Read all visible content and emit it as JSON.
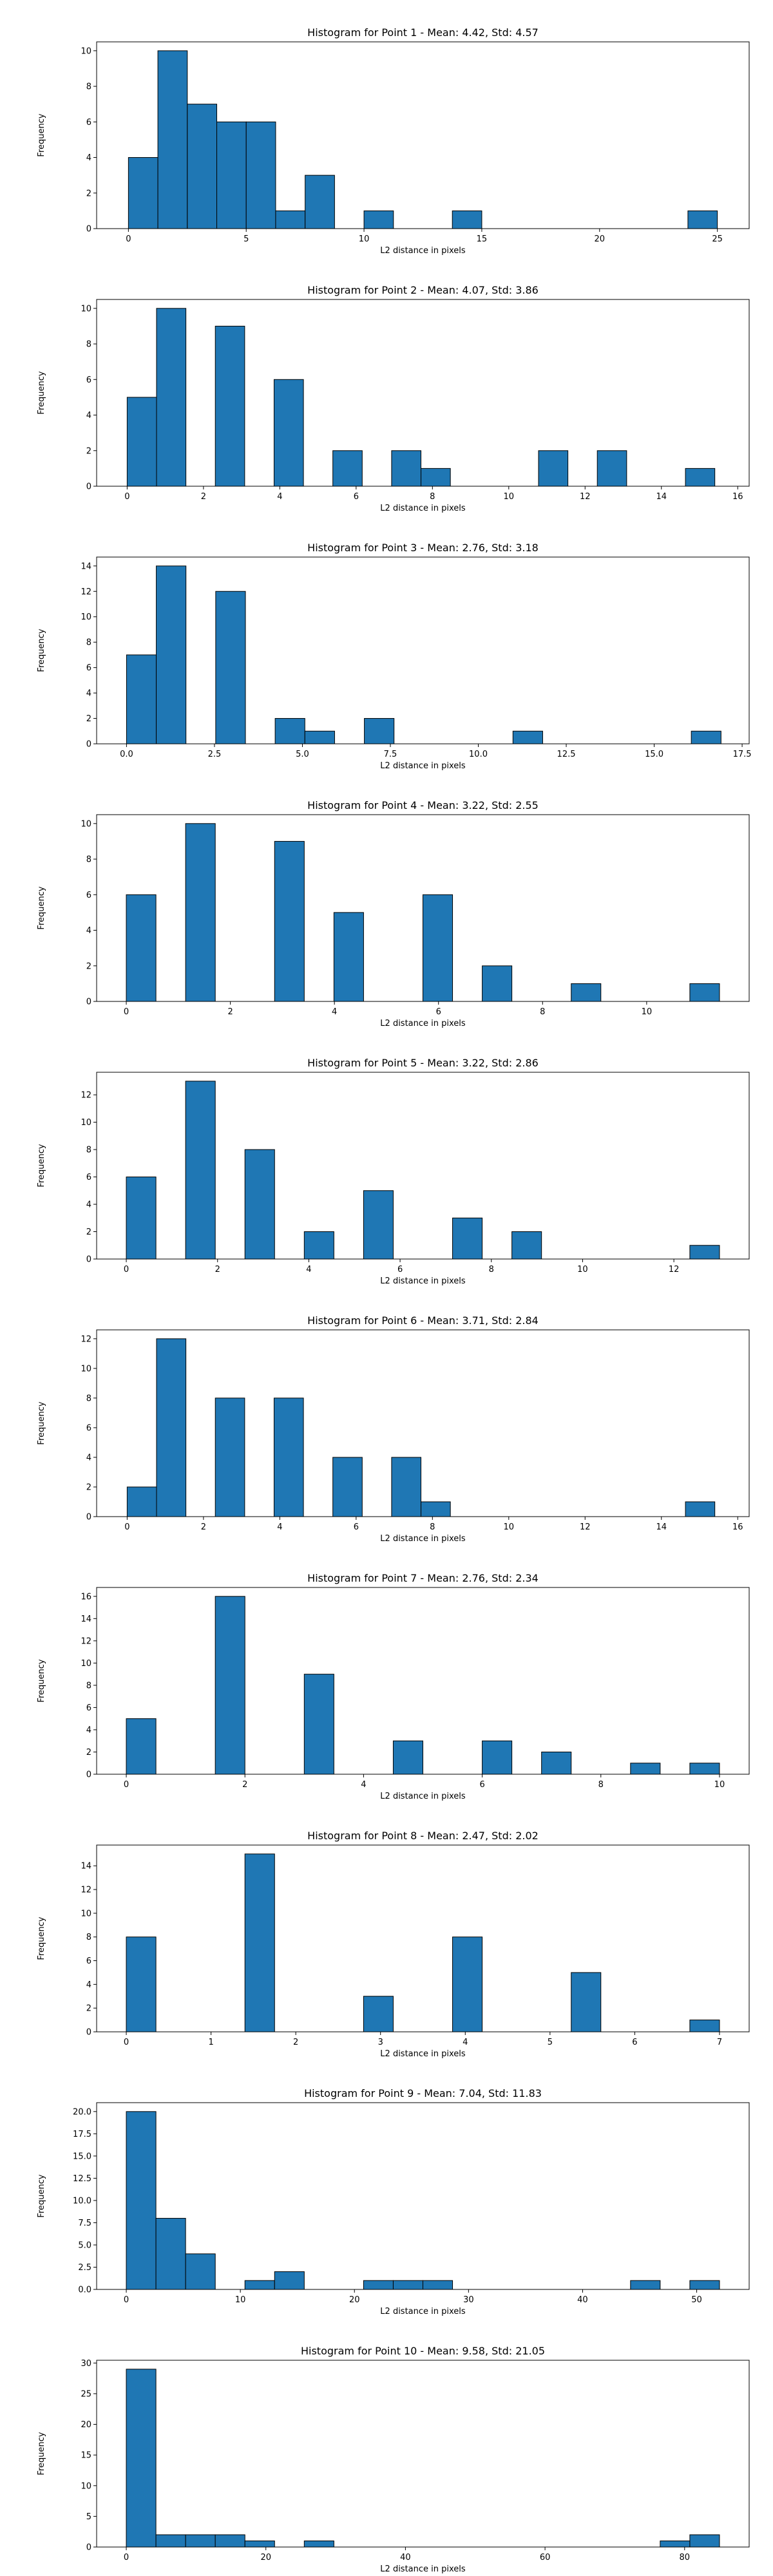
{
  "style": {
    "bar_color": "#1f77b4",
    "edge_color": "#000000"
  },
  "chart_data": [
    {
      "type": "bar",
      "title": "Histogram for Point 1 - Mean: 4.42, Std: 4.57",
      "xlabel": "L2 distance in pixels",
      "ylabel": "Frequency",
      "xlim": [
        -1.35,
        26.35
      ],
      "ylim": [
        0,
        10.5
      ],
      "xticks": [
        0,
        5,
        10,
        15,
        20,
        25
      ],
      "xtick_labels": [
        "0",
        "5",
        "10",
        "15",
        "20",
        "25"
      ],
      "yticks": [
        0,
        2,
        4,
        6,
        8,
        10
      ],
      "ytick_labels": [
        "0",
        "2",
        "4",
        "6",
        "8",
        "10"
      ],
      "grid": false,
      "bin_edges": [
        0,
        1.25,
        2.5,
        3.75,
        5,
        6.25,
        7.5,
        8.75,
        10,
        11.25,
        12.5,
        13.75,
        15,
        16.25,
        17.5,
        18.75,
        20,
        21.25,
        22.5,
        23.75,
        25
      ],
      "values": [
        4,
        10,
        7,
        6,
        6,
        1,
        3,
        0,
        1,
        0,
        0,
        1,
        0,
        0,
        0,
        0,
        0,
        0,
        0,
        1
      ]
    },
    {
      "type": "bar",
      "title": "Histogram for Point 2 - Mean: 4.07, Std: 3.86",
      "xlabel": "L2 distance in pixels",
      "ylabel": "Frequency",
      "xlim": [
        -0.8,
        16.3
      ],
      "ylim": [
        0,
        10.5
      ],
      "xticks": [
        0,
        2,
        4,
        6,
        8,
        10,
        12,
        14,
        16
      ],
      "xtick_labels": [
        "0",
        "2",
        "4",
        "6",
        "8",
        "10",
        "12",
        "14",
        "16"
      ],
      "yticks": [
        0,
        2,
        4,
        6,
        8,
        10
      ],
      "ytick_labels": [
        "0",
        "2",
        "4",
        "6",
        "8",
        "10"
      ],
      "grid": false,
      "bin_edges": [
        0,
        0.77,
        1.54,
        2.31,
        3.08,
        3.85,
        4.62,
        5.39,
        6.16,
        6.93,
        7.7,
        8.47,
        9.24,
        10.01,
        10.78,
        11.55,
        12.32,
        13.09,
        13.86,
        14.63,
        15.4
      ],
      "values": [
        5,
        10,
        0,
        9,
        0,
        6,
        0,
        2,
        0,
        2,
        1,
        0,
        0,
        0,
        2,
        0,
        2,
        0,
        0,
        1
      ]
    },
    {
      "type": "bar",
      "title": "Histogram for Point 3 - Mean: 2.76, Std: 3.18",
      "xlabel": "L2 distance in pixels",
      "ylabel": "Frequency",
      "xlim": [
        -0.85,
        17.7
      ],
      "ylim": [
        0,
        14.7
      ],
      "xticks": [
        0,
        2.5,
        5,
        7.5,
        10,
        12.5,
        15,
        17.5
      ],
      "xtick_labels": [
        "0.0",
        "2.5",
        "5.0",
        "7.5",
        "10.0",
        "12.5",
        "15.0",
        "17.5"
      ],
      "yticks": [
        0,
        2,
        4,
        6,
        8,
        10,
        12,
        14
      ],
      "ytick_labels": [
        "0",
        "2",
        "4",
        "6",
        "8",
        "10",
        "12",
        "14"
      ],
      "grid": false,
      "bin_edges": [
        0,
        0.845,
        1.69,
        2.535,
        3.38,
        4.225,
        5.07,
        5.915,
        6.76,
        7.605,
        8.45,
        9.295,
        10.14,
        10.985,
        11.83,
        12.675,
        13.52,
        14.365,
        15.21,
        16.055,
        16.9
      ],
      "values": [
        7,
        14,
        0,
        12,
        0,
        2,
        1,
        0,
        2,
        0,
        0,
        0,
        0,
        1,
        0,
        0,
        0,
        0,
        0,
        1
      ]
    },
    {
      "type": "bar",
      "title": "Histogram for Point 4 - Mean: 3.22, Std: 2.55",
      "xlabel": "L2 distance in pixels",
      "ylabel": "Frequency",
      "xlim": [
        -0.57,
        11.97
      ],
      "ylim": [
        0,
        10.5
      ],
      "xticks": [
        0,
        2,
        4,
        6,
        8,
        10
      ],
      "xtick_labels": [
        "0",
        "2",
        "4",
        "6",
        "8",
        "10"
      ],
      "yticks": [
        0,
        2,
        4,
        6,
        8,
        10
      ],
      "ytick_labels": [
        "0",
        "2",
        "4",
        "6",
        "8",
        "10"
      ],
      "grid": false,
      "bin_edges": [
        0,
        0.57,
        1.14,
        1.71,
        2.28,
        2.85,
        3.42,
        3.99,
        4.56,
        5.13,
        5.7,
        6.27,
        6.84,
        7.41,
        7.98,
        8.55,
        9.12,
        9.69,
        10.26,
        10.83,
        11.4
      ],
      "values": [
        6,
        0,
        10,
        0,
        0,
        9,
        0,
        5,
        0,
        0,
        6,
        0,
        2,
        0,
        0,
        1,
        0,
        0,
        0,
        1
      ]
    },
    {
      "type": "bar",
      "title": "Histogram for Point 5 - Mean: 3.22, Std: 2.86",
      "xlabel": "L2 distance in pixels",
      "ylabel": "Frequency",
      "xlim": [
        -0.65,
        13.65
      ],
      "ylim": [
        0,
        13.65
      ],
      "xticks": [
        0,
        2,
        4,
        6,
        8,
        10,
        12
      ],
      "xtick_labels": [
        "0",
        "2",
        "4",
        "6",
        "8",
        "10",
        "12"
      ],
      "yticks": [
        0,
        2,
        4,
        6,
        8,
        10,
        12
      ],
      "ytick_labels": [
        "0",
        "2",
        "4",
        "6",
        "8",
        "10",
        "12"
      ],
      "grid": false,
      "bin_edges": [
        0,
        0.65,
        1.3,
        1.95,
        2.6,
        3.25,
        3.9,
        4.55,
        5.2,
        5.85,
        6.5,
        7.15,
        7.8,
        8.45,
        9.1,
        9.75,
        10.4,
        11.05,
        11.7,
        12.35,
        13.0
      ],
      "values": [
        6,
        0,
        13,
        0,
        8,
        0,
        2,
        0,
        5,
        0,
        0,
        3,
        0,
        2,
        0,
        0,
        0,
        0,
        0,
        1
      ]
    },
    {
      "type": "bar",
      "title": "Histogram for Point 6 - Mean: 3.71, Std: 2.84",
      "xlabel": "L2 distance in pixels",
      "ylabel": "Frequency",
      "xlim": [
        -0.8,
        16.3
      ],
      "ylim": [
        0,
        12.6
      ],
      "xticks": [
        0,
        2,
        4,
        6,
        8,
        10,
        12,
        14,
        16
      ],
      "xtick_labels": [
        "0",
        "2",
        "4",
        "6",
        "8",
        "10",
        "12",
        "14",
        "16"
      ],
      "yticks": [
        0,
        2,
        4,
        6,
        8,
        10,
        12
      ],
      "ytick_labels": [
        "0",
        "2",
        "4",
        "6",
        "8",
        "10",
        "12"
      ],
      "grid": false,
      "bin_edges": [
        0,
        0.77,
        1.54,
        2.31,
        3.08,
        3.85,
        4.62,
        5.39,
        6.16,
        6.93,
        7.7,
        8.47,
        9.24,
        10.01,
        10.78,
        11.55,
        12.32,
        13.09,
        13.86,
        14.63,
        15.4
      ],
      "values": [
        2,
        12,
        0,
        8,
        0,
        8,
        0,
        4,
        0,
        4,
        1,
        0,
        0,
        0,
        0,
        0,
        0,
        0,
        0,
        1
      ]
    },
    {
      "type": "bar",
      "title": "Histogram for Point 7 - Mean: 2.76, Std: 2.34",
      "xlabel": "L2 distance in pixels",
      "ylabel": "Frequency",
      "xlim": [
        -0.5,
        10.5
      ],
      "ylim": [
        0,
        16.8
      ],
      "xticks": [
        0,
        2,
        4,
        6,
        8,
        10
      ],
      "xtick_labels": [
        "0",
        "2",
        "4",
        "6",
        "8",
        "10"
      ],
      "yticks": [
        0,
        2,
        4,
        6,
        8,
        10,
        12,
        14,
        16
      ],
      "ytick_labels": [
        "0",
        "2",
        "4",
        "6",
        "8",
        "10",
        "12",
        "14",
        "16"
      ],
      "grid": false,
      "bin_edges": [
        0,
        0.5,
        1.0,
        1.5,
        2.0,
        2.5,
        3.0,
        3.5,
        4.0,
        4.5,
        5.0,
        5.5,
        6.0,
        6.5,
        7.0,
        7.5,
        8.0,
        8.5,
        9.0,
        9.5,
        10.0
      ],
      "values": [
        5,
        0,
        0,
        16,
        0,
        0,
        9,
        0,
        0,
        3,
        0,
        0,
        3,
        0,
        2,
        0,
        0,
        1,
        0,
        1
      ]
    },
    {
      "type": "bar",
      "title": "Histogram for Point 8 - Mean: 2.47, Std: 2.02",
      "xlabel": "L2 distance in pixels",
      "ylabel": "Frequency",
      "xlim": [
        -0.35,
        7.35
      ],
      "ylim": [
        0,
        15.75
      ],
      "xticks": [
        0,
        1,
        2,
        3,
        4,
        5,
        6,
        7
      ],
      "xtick_labels": [
        "0",
        "1",
        "2",
        "3",
        "4",
        "5",
        "6",
        "7"
      ],
      "yticks": [
        0,
        2,
        4,
        6,
        8,
        10,
        12,
        14
      ],
      "ytick_labels": [
        "0",
        "2",
        "4",
        "6",
        "8",
        "10",
        "12",
        "14"
      ],
      "grid": false,
      "bin_edges": [
        0,
        0.35,
        0.7,
        1.05,
        1.4,
        1.75,
        2.1,
        2.45,
        2.8,
        3.15,
        3.5,
        3.85,
        4.2,
        4.55,
        4.9,
        5.25,
        5.6,
        5.95,
        6.3,
        6.65,
        7.0
      ],
      "values": [
        8,
        0,
        0,
        0,
        15,
        0,
        0,
        0,
        3,
        0,
        0,
        8,
        0,
        0,
        0,
        5,
        0,
        0,
        0,
        1
      ]
    },
    {
      "type": "bar",
      "title": "Histogram for Point 9 - Mean: 7.04, Std: 11.83",
      "xlabel": "L2 distance in pixels",
      "ylabel": "Frequency",
      "xlim": [
        -2.6,
        54.6
      ],
      "ylim": [
        0,
        21
      ],
      "xticks": [
        0,
        10,
        20,
        30,
        40,
        50
      ],
      "xtick_labels": [
        "0",
        "10",
        "20",
        "30",
        "40",
        "50"
      ],
      "yticks": [
        0,
        2.5,
        5,
        7.5,
        10,
        12.5,
        15,
        17.5,
        20
      ],
      "ytick_labels": [
        "0.0",
        "2.5",
        "5.0",
        "7.5",
        "10.0",
        "12.5",
        "15.0",
        "17.5",
        "20.0"
      ],
      "grid": false,
      "bin_edges": [
        0,
        2.6,
        5.2,
        7.8,
        10.4,
        13.0,
        15.6,
        18.2,
        20.8,
        23.4,
        26.0,
        28.6,
        31.2,
        33.8,
        36.4,
        39.0,
        41.6,
        44.2,
        46.8,
        49.4,
        52.0
      ],
      "values": [
        20,
        8,
        4,
        0,
        1,
        2,
        0,
        0,
        1,
        1,
        1,
        0,
        0,
        0,
        0,
        0,
        0,
        1,
        0,
        1
      ]
    },
    {
      "type": "bar",
      "title": "Histogram for Point 10 - Mean: 9.58, Std: 21.05",
      "xlabel": "L2 distance in pixels",
      "ylabel": "Frequency",
      "xlim": [
        -4.25,
        89.25
      ],
      "ylim": [
        0,
        30.45
      ],
      "xticks": [
        0,
        20,
        40,
        60,
        80
      ],
      "xtick_labels": [
        "0",
        "20",
        "40",
        "60",
        "80"
      ],
      "yticks": [
        0,
        5,
        10,
        15,
        20,
        25,
        30
      ],
      "ytick_labels": [
        "0",
        "5",
        "10",
        "15",
        "20",
        "25",
        "30"
      ],
      "grid": false,
      "bin_edges": [
        0,
        4.25,
        8.5,
        12.75,
        17.0,
        21.25,
        25.5,
        29.75,
        34.0,
        38.25,
        42.5,
        46.75,
        51.0,
        55.25,
        59.5,
        63.75,
        68.0,
        72.25,
        76.5,
        80.75,
        85.0
      ],
      "values": [
        29,
        2,
        2,
        2,
        1,
        0,
        1,
        0,
        0,
        0,
        0,
        0,
        0,
        0,
        0,
        0,
        0,
        0,
        1,
        2
      ]
    }
  ]
}
